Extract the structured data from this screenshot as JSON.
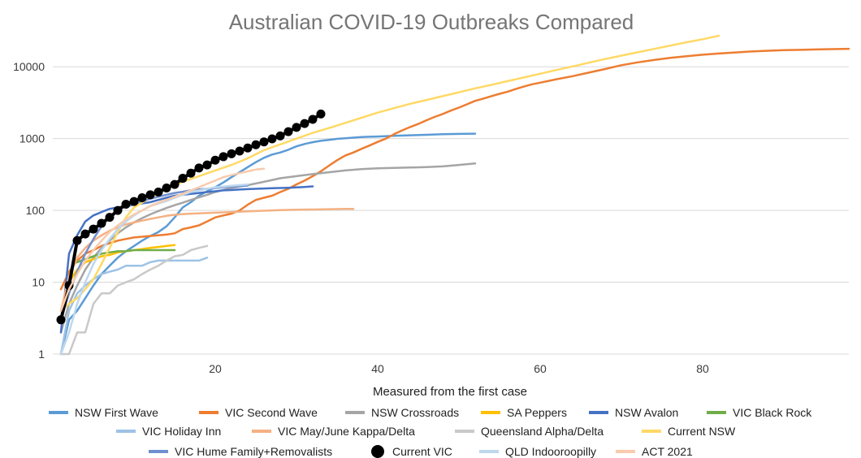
{
  "chart_data": {
    "type": "line",
    "title": "Australian COVID-19 Outbreaks Compared",
    "xlabel": "Measured from the first case",
    "ylabel": "",
    "yscale": "log",
    "xlim": [
      0,
      98
    ],
    "ylim": [
      1,
      30000
    ],
    "x_ticks": [
      20,
      40,
      60,
      80
    ],
    "x_tick_labels": [
      "20",
      "40",
      "60",
      "80"
    ],
    "y_ticks": [
      1,
      10,
      100,
      1000,
      10000
    ],
    "y_tick_labels": [
      "1",
      "10",
      "100",
      "1000",
      "10000"
    ],
    "grid": "horizontal",
    "legend": "bottom",
    "series": [
      {
        "name": "NSW First Wave",
        "color": "#5b9bd5",
        "marker": false,
        "x": [
          1,
          2,
          3,
          4,
          5,
          6,
          7,
          8,
          9,
          10,
          11,
          12,
          13,
          14,
          15,
          16,
          17,
          18,
          19,
          20,
          21,
          22,
          23,
          24,
          25,
          26,
          27,
          28,
          29,
          30,
          31,
          32,
          33,
          34,
          35,
          36,
          37,
          38,
          39,
          40,
          42,
          44,
          46,
          48,
          50,
          52
        ],
        "y": [
          1,
          3,
          4,
          6,
          9,
          13,
          17,
          22,
          27,
          32,
          38,
          44,
          50,
          60,
          80,
          110,
          130,
          160,
          185,
          210,
          245,
          290,
          340,
          400,
          470,
          540,
          600,
          640,
          700,
          780,
          840,
          890,
          930,
          960,
          990,
          1010,
          1030,
          1050,
          1060,
          1070,
          1090,
          1110,
          1130,
          1150,
          1160,
          1170
        ]
      },
      {
        "name": "VIC Second Wave",
        "color": "#ed7d31",
        "marker": false,
        "x": [
          1,
          2,
          3,
          4,
          5,
          6,
          7,
          8,
          9,
          10,
          11,
          12,
          13,
          14,
          15,
          16,
          17,
          18,
          19,
          20,
          21,
          22,
          23,
          24,
          25,
          26,
          27,
          28,
          29,
          30,
          31,
          32,
          33,
          34,
          35,
          36,
          37,
          38,
          39,
          40,
          41,
          42,
          43,
          44,
          45,
          46,
          47,
          48,
          49,
          50,
          51,
          52,
          53,
          54,
          55,
          56,
          57,
          58,
          59,
          60,
          62,
          64,
          66,
          68,
          70,
          72,
          74,
          76,
          78,
          80,
          82,
          84,
          86,
          88,
          90,
          92,
          94,
          96,
          98
        ],
        "y": [
          8,
          14,
          20,
          25,
          28,
          32,
          35,
          38,
          40,
          42,
          43,
          44,
          45,
          46,
          48,
          55,
          58,
          62,
          70,
          80,
          85,
          90,
          100,
          120,
          140,
          150,
          160,
          180,
          200,
          230,
          260,
          300,
          350,
          420,
          500,
          580,
          640,
          720,
          800,
          900,
          1000,
          1150,
          1300,
          1450,
          1600,
          1800,
          2000,
          2200,
          2450,
          2700,
          3000,
          3350,
          3600,
          3900,
          4200,
          4500,
          4900,
          5300,
          5700,
          6000,
          6700,
          7400,
          8300,
          9300,
          10500,
          11500,
          12400,
          13300,
          14000,
          14700,
          15300,
          15800,
          16300,
          16700,
          17000,
          17200,
          17400,
          17600,
          17800
        ]
      },
      {
        "name": "NSW Crossroads",
        "color": "#a5a5a5",
        "marker": false,
        "x": [
          1,
          2,
          3,
          4,
          5,
          6,
          7,
          8,
          9,
          10,
          11,
          12,
          13,
          14,
          15,
          16,
          17,
          18,
          19,
          20,
          22,
          24,
          26,
          28,
          30,
          32,
          34,
          36,
          38,
          40,
          42,
          44,
          46,
          48,
          50,
          52
        ],
        "y": [
          2,
          5,
          9,
          15,
          22,
          30,
          38,
          48,
          58,
          68,
          78,
          88,
          98,
          108,
          118,
          128,
          140,
          152,
          165,
          180,
          205,
          225,
          250,
          280,
          300,
          320,
          340,
          360,
          375,
          385,
          390,
          395,
          400,
          410,
          430,
          450
        ]
      },
      {
        "name": "SA Peppers",
        "color": "#ffc000",
        "marker": false,
        "x": [
          1,
          2,
          3,
          4,
          5,
          6,
          7,
          8,
          9,
          10,
          11,
          12,
          13,
          14,
          15
        ],
        "y": [
          4,
          10,
          15,
          19,
          21,
          23,
          24,
          26,
          27,
          28,
          29,
          30,
          31,
          32,
          33
        ]
      },
      {
        "name": "NSW Avalon",
        "color": "#4472c4",
        "marker": false,
        "x": [
          1,
          2,
          3,
          4,
          5,
          6,
          7,
          8,
          9,
          10,
          11,
          12,
          13,
          14,
          15,
          16,
          17,
          18,
          19,
          20,
          21,
          22,
          23,
          24,
          25,
          26,
          27,
          28,
          29,
          30,
          31,
          32
        ],
        "y": [
          2,
          25,
          45,
          70,
          85,
          95,
          105,
          110,
          115,
          120,
          125,
          130,
          140,
          150,
          160,
          165,
          170,
          175,
          180,
          185,
          190,
          192,
          195,
          198,
          200,
          202,
          204,
          205,
          207,
          209,
          212,
          216
        ]
      },
      {
        "name": "VIC Black Rock",
        "color": "#70ad47",
        "marker": false,
        "x": [
          3,
          4,
          5,
          6,
          7,
          8,
          9,
          10,
          11,
          12,
          13,
          14,
          15
        ],
        "y": [
          19,
          21,
          23,
          25,
          26,
          27,
          27,
          28,
          28,
          28,
          28,
          28,
          28
        ]
      },
      {
        "name": "VIC Holiday Inn",
        "color": "#9dc3e6",
        "marker": false,
        "x": [
          1,
          2,
          3,
          4,
          5,
          6,
          7,
          8,
          9,
          10,
          11,
          12,
          13,
          14,
          15,
          16,
          17,
          18,
          19
        ],
        "y": [
          1,
          4,
          7,
          9,
          11,
          13,
          14,
          15,
          17,
          17,
          17,
          19,
          20,
          20,
          20,
          20,
          20,
          20,
          22
        ]
      },
      {
        "name": "VIC May/June Kappa/Delta",
        "color": "#f4b183",
        "marker": false,
        "x": [
          1,
          2,
          3,
          4,
          5,
          6,
          7,
          8,
          9,
          10,
          11,
          12,
          13,
          14,
          15,
          16,
          17,
          18,
          19,
          20,
          22,
          24,
          26,
          28,
          30,
          32,
          34,
          36,
          37
        ],
        "y": [
          4,
          12,
          22,
          30,
          38,
          45,
          52,
          58,
          64,
          68,
          72,
          76,
          80,
          84,
          87,
          89,
          90,
          91,
          92,
          93,
          95,
          97,
          99,
          101,
          102,
          103,
          104,
          105,
          105
        ]
      },
      {
        "name": "Queensland Alpha/Delta",
        "color": "#c9c9c9",
        "marker": false,
        "x": [
          1,
          2,
          3,
          4,
          5,
          6,
          7,
          8,
          9,
          10,
          11,
          12,
          13,
          14,
          15,
          16,
          17,
          18,
          19
        ],
        "y": [
          1,
          1,
          2,
          2,
          5,
          7,
          7,
          9,
          10,
          11,
          13,
          15,
          17,
          20,
          23,
          24,
          28,
          30,
          32
        ]
      },
      {
        "name": "Current NSW",
        "color": "#ffd966",
        "marker": false,
        "x": [
          1,
          2,
          3,
          4,
          5,
          6,
          7,
          8,
          9,
          10,
          12,
          14,
          16,
          18,
          20,
          22,
          24,
          26,
          28,
          30,
          32,
          34,
          36,
          38,
          40,
          42,
          44,
          46,
          48,
          50,
          52,
          54,
          56,
          58,
          60,
          62,
          64,
          66,
          68,
          70,
          72,
          74,
          76,
          78,
          80,
          82
        ],
        "y": [
          4,
          5,
          6,
          8,
          11,
          18,
          30,
          50,
          80,
          110,
          150,
          200,
          250,
          300,
          360,
          430,
          530,
          690,
          830,
          1000,
          1200,
          1400,
          1650,
          1950,
          2300,
          2650,
          3050,
          3450,
          3900,
          4400,
          5000,
          5600,
          6300,
          7100,
          8000,
          9000,
          10100,
          11400,
          12800,
          14300,
          15900,
          17700,
          19700,
          21900,
          24200,
          27000
        ]
      },
      {
        "name": "VIC Hume Family+Removalists",
        "color": "#6f8fcf",
        "marker": false,
        "x": [
          1,
          2,
          3,
          4,
          5,
          6,
          7,
          8,
          9,
          10,
          11,
          12,
          13,
          14,
          15,
          16,
          17,
          18,
          19,
          20,
          21,
          22,
          23,
          24
        ],
        "y": [
          3,
          7,
          14,
          25,
          40,
          60,
          80,
          100,
          115,
          125,
          135,
          145,
          155,
          165,
          175,
          182,
          190,
          196,
          200,
          205,
          210,
          214,
          218,
          222
        ]
      },
      {
        "name": "Current VIC",
        "color": "#000000",
        "marker": true,
        "x": [
          1,
          2,
          3,
          4,
          5,
          6,
          7,
          8,
          9,
          10,
          11,
          12,
          13,
          14,
          15,
          16,
          17,
          18,
          19,
          20,
          21,
          22,
          23,
          24,
          25,
          26,
          27,
          28,
          29,
          30,
          31,
          32,
          33
        ],
        "y": [
          3,
          9,
          38,
          47,
          55,
          66,
          80,
          100,
          122,
          133,
          150,
          165,
          180,
          205,
          230,
          280,
          330,
          390,
          430,
          500,
          560,
          615,
          670,
          740,
          820,
          900,
          990,
          1090,
          1250,
          1430,
          1620,
          1850,
          2200
        ]
      },
      {
        "name": "QLD Indooroopilly",
        "color": "#bdd7ee",
        "marker": false,
        "x": [
          1,
          2,
          3,
          4,
          5,
          6,
          7,
          8,
          9,
          10,
          11,
          12,
          13,
          14,
          15,
          16,
          17,
          18,
          19,
          20,
          21,
          22,
          23,
          24
        ],
        "y": [
          1,
          2,
          5,
          10,
          18,
          28,
          40,
          55,
          70,
          85,
          100,
          115,
          125,
          135,
          150,
          165,
          180,
          190,
          200,
          210,
          215,
          220,
          225,
          230
        ]
      },
      {
        "name": "ACT 2021",
        "color": "#f8cbad",
        "marker": false,
        "x": [
          1,
          2,
          3,
          4,
          5,
          6,
          7,
          8,
          9,
          10,
          11,
          12,
          13,
          14,
          15,
          16,
          17,
          18,
          19,
          20,
          21,
          22,
          23,
          24,
          25,
          26
        ],
        "y": [
          4,
          8,
          13,
          20,
          28,
          38,
          50,
          62,
          75,
          88,
          100,
          115,
          128,
          140,
          155,
          170,
          190,
          210,
          235,
          260,
          290,
          310,
          330,
          350,
          370,
          380
        ]
      }
    ]
  }
}
